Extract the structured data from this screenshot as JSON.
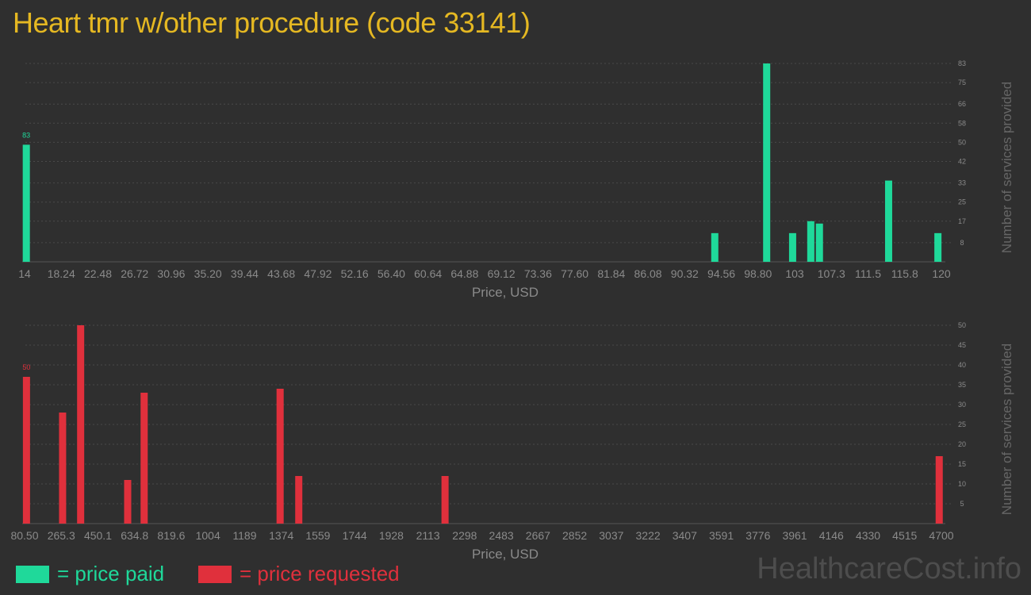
{
  "title": "Heart tmr w/other procedure (code 33141)",
  "colors": {
    "background": "#2f2f2f",
    "title": "#e5b822",
    "paid": "#1fd99a",
    "requested": "#e0303c",
    "axis_text": "#8a8a8a",
    "grid": "#4a4a4a"
  },
  "legend": {
    "paid_label": "= price paid",
    "requested_label": "= price requested"
  },
  "watermark": "HealthcareCost.info",
  "chart_data": [
    {
      "type": "bar",
      "series": [
        {
          "name": "price paid",
          "color": "#1fd99a"
        }
      ],
      "xlabel": "Price, USD",
      "ylabel": "Number of services provided",
      "x_tick_labels": [
        "14",
        "18.24",
        "22.48",
        "26.72",
        "30.96",
        "35.20",
        "39.44",
        "43.68",
        "47.92",
        "52.16",
        "56.40",
        "60.64",
        "64.88",
        "69.12",
        "73.36",
        "77.60",
        "81.84",
        "86.08",
        "90.32",
        "94.56",
        "98.80",
        "103",
        "107.3",
        "111.5",
        "115.8",
        "120"
      ],
      "x_range": [
        14,
        120
      ],
      "y_tick_labels": [
        "8",
        "17",
        "25",
        "33",
        "42",
        "50",
        "58",
        "66",
        "75",
        "83"
      ],
      "ylim": [
        0,
        83
      ],
      "grid": true,
      "peak_label": "83",
      "bars": [
        {
          "x": 14.2,
          "y": 49
        },
        {
          "x": 93.8,
          "y": 12
        },
        {
          "x": 99.8,
          "y": 83
        },
        {
          "x": 102.8,
          "y": 12
        },
        {
          "x": 104.9,
          "y": 17
        },
        {
          "x": 105.9,
          "y": 16
        },
        {
          "x": 113.9,
          "y": 34
        },
        {
          "x": 119.6,
          "y": 12
        }
      ]
    },
    {
      "type": "bar",
      "series": [
        {
          "name": "price requested",
          "color": "#e0303c"
        }
      ],
      "xlabel": "Price, USD",
      "ylabel": "Number of services provided",
      "x_tick_labels": [
        "80.50",
        "265.3",
        "450.1",
        "634.8",
        "819.6",
        "1004",
        "1189",
        "1374",
        "1559",
        "1744",
        "1928",
        "2113",
        "2298",
        "2483",
        "2667",
        "2852",
        "3037",
        "3222",
        "3407",
        "3591",
        "3776",
        "3961",
        "4146",
        "4330",
        "4515",
        "4700"
      ],
      "x_range": [
        80.5,
        4700
      ],
      "y_tick_labels": [
        "5",
        "10",
        "15",
        "20",
        "25",
        "30",
        "35",
        "40",
        "45",
        "50"
      ],
      "ylim": [
        0,
        50
      ],
      "grid": true,
      "peak_label": "50",
      "bars": [
        {
          "x": 90,
          "y": 37
        },
        {
          "x": 272,
          "y": 28
        },
        {
          "x": 363,
          "y": 50
        },
        {
          "x": 600,
          "y": 11
        },
        {
          "x": 683,
          "y": 33
        },
        {
          "x": 1368,
          "y": 34
        },
        {
          "x": 1462,
          "y": 12
        },
        {
          "x": 2199,
          "y": 12
        },
        {
          "x": 4689,
          "y": 17
        }
      ]
    }
  ]
}
